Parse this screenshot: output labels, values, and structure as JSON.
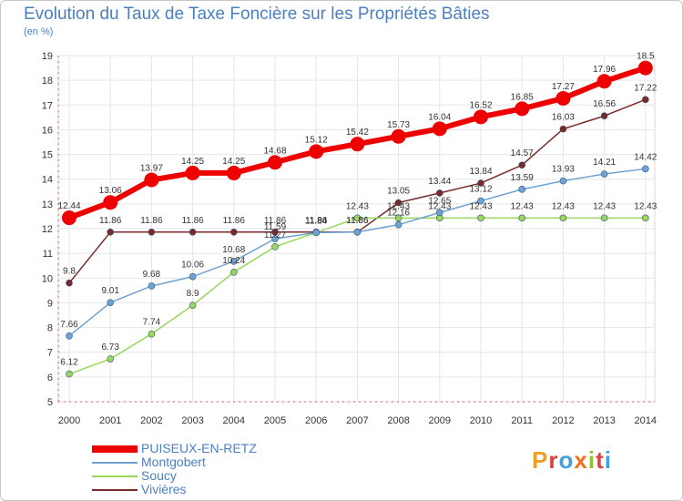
{
  "chart_data": {
    "type": "line",
    "title": "Evolution du Taux de Taxe Foncière sur les Propriétés Bâties",
    "unit_label": "(en %)",
    "xlabel": "",
    "ylabel": "",
    "categories": [
      "2000",
      "2001",
      "2002",
      "2003",
      "2004",
      "2005",
      "2006",
      "2007",
      "2008",
      "2009",
      "2010",
      "2011",
      "2012",
      "2013",
      "2014"
    ],
    "ylim": [
      5,
      19
    ],
    "yticks": [
      5,
      6,
      7,
      8,
      9,
      10,
      11,
      12,
      13,
      14,
      15,
      16,
      17,
      18,
      19
    ],
    "series": [
      {
        "name": "PUISEUX-EN-RETZ",
        "color": "#ee0000",
        "width": 6,
        "marker": 8,
        "values": [
          12.44,
          13.06,
          13.97,
          14.25,
          14.25,
          14.68,
          15.12,
          15.42,
          15.73,
          16.04,
          16.52,
          16.85,
          17.27,
          17.96,
          18.5
        ],
        "labels": [
          "12.44",
          "13.06",
          "13.97",
          "14.25",
          "14.25",
          "14.68",
          "15.12",
          "15.42",
          "15.73",
          "16.04",
          "16.52",
          "16.85",
          "17.27",
          "17.96",
          "18.5"
        ]
      },
      {
        "name": "Montgobert",
        "color": "#6fa3d2",
        "width": 1.5,
        "marker": 3.5,
        "values": [
          7.66,
          9.01,
          9.68,
          10.06,
          10.68,
          11.59,
          11.84,
          11.86,
          12.16,
          12.65,
          13.12,
          13.59,
          13.93,
          14.21,
          14.42
        ],
        "labels": [
          "7.66",
          "9.01",
          "9.68",
          "10.06",
          "10.68",
          "11.59",
          "11.84",
          "11.86",
          "12.16",
          "12.65",
          "13.12",
          "13.59",
          "13.93",
          "14.21",
          "14.42"
        ]
      },
      {
        "name": "Soucy",
        "color": "#99d65c",
        "width": 1.5,
        "marker": 3.5,
        "values": [
          6.12,
          6.73,
          7.74,
          8.9,
          10.24,
          11.27,
          11.84,
          12.43,
          12.43,
          12.43,
          12.43,
          12.43,
          12.43,
          12.43,
          12.43
        ],
        "labels": [
          "6.12",
          "6.73",
          "7.74",
          "8.9",
          "10.24",
          "11.27",
          "11.84",
          "12.43",
          "12.43",
          "12.43",
          "12.43",
          "12.43",
          "12.43",
          "12.43",
          "12.43"
        ]
      },
      {
        "name": "Vivières",
        "color": "#7a2a2a",
        "width": 1.5,
        "marker": 3.5,
        "values": [
          9.8,
          11.86,
          11.86,
          11.86,
          11.86,
          11.86,
          11.86,
          11.86,
          13.05,
          13.44,
          13.84,
          14.57,
          16.03,
          16.56,
          17.22
        ],
        "labels": [
          "9.8",
          "11.86",
          "11.86",
          "11.86",
          "11.86",
          "11.86",
          "11.86",
          "11.86",
          "13.05",
          "13.44",
          "13.84",
          "14.57",
          "16.03",
          "16.56",
          "17.22"
        ]
      }
    ]
  },
  "logo": {
    "text": "Proxiti"
  }
}
